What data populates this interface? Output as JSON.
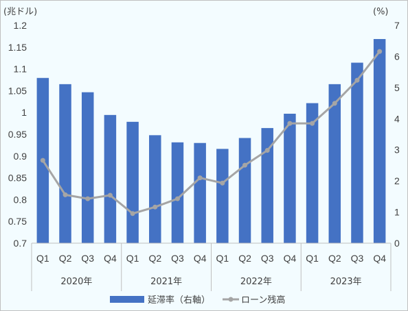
{
  "chart_data": {
    "type": "bar+line",
    "quarters": [
      "Q1",
      "Q2",
      "Q3",
      "Q4",
      "Q1",
      "Q2",
      "Q3",
      "Q4",
      "Q1",
      "Q2",
      "Q3",
      "Q4",
      "Q1",
      "Q2",
      "Q3",
      "Q4"
    ],
    "years": [
      "2020年",
      "2021年",
      "2022年",
      "2023年"
    ],
    "series": [
      {
        "name": "延滞率（右軸）",
        "type": "bar",
        "axis": "right",
        "color": "#4472c4",
        "values": [
          5.31,
          5.11,
          4.85,
          4.12,
          3.9,
          3.47,
          3.24,
          3.22,
          3.03,
          3.38,
          3.7,
          4.16,
          4.5,
          5.11,
          5.8,
          6.56
        ]
      },
      {
        "name": "ローン残高",
        "type": "line",
        "axis": "left",
        "color": "#a5a5a5",
        "values": [
          0.89,
          0.811,
          0.802,
          0.81,
          0.768,
          0.783,
          0.802,
          0.85,
          0.838,
          0.879,
          0.913,
          0.975,
          0.975,
          1.021,
          1.074,
          1.14
        ]
      }
    ],
    "left_axis": {
      "unit_label": "(兆ドル)",
      "min": 0.7,
      "max": 1.2,
      "step": 0.05,
      "ticks": [
        "0.7",
        "0.75",
        "0.8",
        "0.85",
        "0.9",
        "0.95",
        "1",
        "1.05",
        "1.1",
        "1.15",
        "1.2"
      ]
    },
    "right_axis": {
      "unit_label": "(%)",
      "min": 0,
      "max": 7,
      "step": 1,
      "ticks": [
        "0",
        "1",
        "2",
        "3",
        "4",
        "5",
        "6",
        "7"
      ]
    },
    "grid": false,
    "legend_position": "bottom"
  }
}
